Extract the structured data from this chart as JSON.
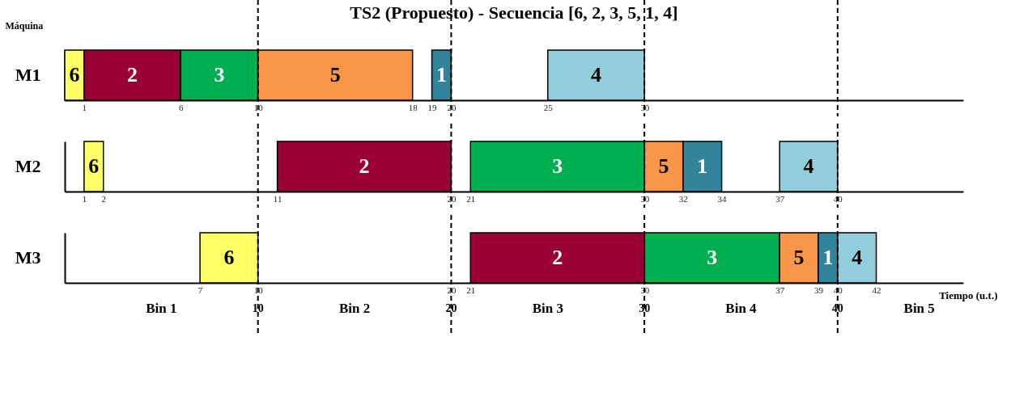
{
  "chart_data": [
    {
      "type": "bar",
      "orientation": "horizontal",
      "title": "TS2 (Propuesto)  -  Secuencia [6, 2, 3, 5, 1, 4]",
      "ylabel": "Máquina",
      "categories": [
        "M1"
      ],
      "xlim": [
        0,
        46.5
      ],
      "xticks": [
        1,
        6,
        10,
        18,
        19,
        20,
        25,
        30
      ],
      "series": [
        {
          "name": "6",
          "color": "#ffff66",
          "values": [
            1
          ],
          "base": [
            0
          ]
        },
        {
          "name": "2",
          "color": "#990033",
          "values": [
            5
          ],
          "base": [
            1
          ]
        },
        {
          "name": "3",
          "color": "#00b050",
          "values": [
            4
          ],
          "base": [
            6
          ]
        },
        {
          "name": "5",
          "color": "#f79646",
          "values": [
            8
          ],
          "base": [
            10
          ]
        },
        {
          "name": "1",
          "color": "#31849b",
          "values": [
            1
          ],
          "base": [
            19
          ]
        },
        {
          "name": "4",
          "color": "#92cddc",
          "values": [
            5
          ],
          "base": [
            25
          ]
        }
      ],
      "ref_lines": [
        {
          "axis": "x",
          "value": 10,
          "line_style": "dashed"
        },
        {
          "axis": "x",
          "value": 20,
          "line_style": "dashed"
        },
        {
          "axis": "x",
          "value": 30,
          "line_style": "dashed"
        },
        {
          "axis": "x",
          "value": 40,
          "line_style": "dashed"
        }
      ]
    },
    {
      "type": "bar",
      "orientation": "horizontal",
      "categories": [
        "M2"
      ],
      "xlim": [
        0,
        46.5
      ],
      "xticks": [
        1,
        2,
        11,
        20,
        21,
        30,
        32,
        34,
        37,
        40
      ],
      "series": [
        {
          "name": "6",
          "color": "#ffff66",
          "values": [
            1
          ],
          "base": [
            1
          ]
        },
        {
          "name": "2",
          "color": "#990033",
          "values": [
            9
          ],
          "base": [
            11
          ]
        },
        {
          "name": "3",
          "color": "#00b050",
          "values": [
            9
          ],
          "base": [
            21
          ]
        },
        {
          "name": "5",
          "color": "#f79646",
          "values": [
            2
          ],
          "base": [
            30
          ]
        },
        {
          "name": "1",
          "color": "#31849b",
          "values": [
            2
          ],
          "base": [
            32
          ]
        },
        {
          "name": "4",
          "color": "#92cddc",
          "values": [
            3
          ],
          "base": [
            37
          ]
        }
      ],
      "ref_lines": [
        {
          "axis": "x",
          "value": 10,
          "line_style": "dashed"
        },
        {
          "axis": "x",
          "value": 20,
          "line_style": "dashed"
        },
        {
          "axis": "x",
          "value": 30,
          "line_style": "dashed"
        },
        {
          "axis": "x",
          "value": 40,
          "line_style": "dashed"
        }
      ]
    },
    {
      "type": "bar",
      "orientation": "horizontal",
      "xlabel": "Tiempo (u.t.)",
      "categories": [
        "M3"
      ],
      "xlim": [
        0,
        46.5
      ],
      "xticks": [
        7,
        10,
        20,
        21,
        30,
        37,
        39,
        40,
        42
      ],
      "series": [
        {
          "name": "6",
          "color": "#ffff66",
          "values": [
            3
          ],
          "base": [
            7
          ]
        },
        {
          "name": "2",
          "color": "#990033",
          "values": [
            9
          ],
          "base": [
            21
          ]
        },
        {
          "name": "3",
          "color": "#00b050",
          "values": [
            7
          ],
          "base": [
            30
          ]
        },
        {
          "name": "5",
          "color": "#f79646",
          "values": [
            2
          ],
          "base": [
            37
          ]
        },
        {
          "name": "1",
          "color": "#31849b",
          "values": [
            1
          ],
          "base": [
            39
          ]
        },
        {
          "name": "4",
          "color": "#92cddc",
          "values": [
            2
          ],
          "base": [
            40
          ]
        }
      ],
      "ref_lines": [
        {
          "axis": "x",
          "value": 10,
          "label": "10",
          "line_style": "dashed"
        },
        {
          "axis": "x",
          "value": 20,
          "label": "20",
          "line_style": "dashed"
        },
        {
          "axis": "x",
          "value": 30,
          "label": "30",
          "line_style": "dashed"
        },
        {
          "axis": "x",
          "value": 40,
          "label": "40",
          "line_style": "dashed"
        }
      ],
      "annotations": [
        "Bin 1",
        "Bin 2",
        "Bin 3",
        "Bin 4",
        "Bin 5"
      ]
    }
  ]
}
